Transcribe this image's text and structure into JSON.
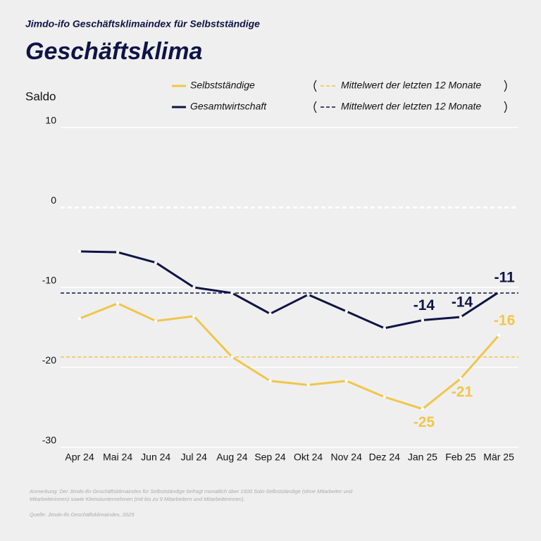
{
  "chart_data": {
    "type": "line",
    "supertitle": "Jimdo-ifo Geschäftsklimaindex für Selbstständige",
    "title": "Geschäftsklima",
    "y_label": "Saldo",
    "categories": [
      "Apr 24",
      "Mai 24",
      "Jun 24",
      "Jul 24",
      "Aug 24",
      "Sep 24",
      "Okt 24",
      "Nov 24",
      "Dez 24",
      "Jan 25",
      "Feb 25",
      "Mär 25"
    ],
    "series": [
      {
        "name": "Selbstständige",
        "color": "#f0c64a",
        "values": [
          -13.9,
          -12.0,
          -14.2,
          -13.6,
          -18.7,
          -21.7,
          -22.2,
          -21.7,
          -23.7,
          -25.2,
          -21.4,
          -16.0
        ],
        "value_labels": [
          null,
          null,
          null,
          null,
          null,
          null,
          null,
          null,
          null,
          "-25",
          "-21",
          "-16"
        ],
        "mean": -18.7,
        "mean_label": "Mittelwert der letzten 12 Monate"
      },
      {
        "name": "Gesamtwirtschaft",
        "color": "#0f1446",
        "values": [
          -5.5,
          -5.6,
          -6.9,
          -10.0,
          -10.7,
          -13.3,
          -10.9,
          -13.0,
          -15.1,
          -14.1,
          -13.7,
          -10.6
        ],
        "value_labels": [
          null,
          null,
          null,
          null,
          null,
          null,
          null,
          null,
          null,
          "-14",
          "-14",
          "-11"
        ],
        "mean": -10.7,
        "mean_label": "Mittelwert der letzten 12 Monate"
      }
    ],
    "ylim": [
      -30,
      10
    ],
    "yticks": [
      10,
      0,
      -10,
      -20,
      -30
    ],
    "grid": true,
    "notes": [
      "Anmerkung: Der Jimdo-ifo Geschäftsklimaindex für Selbstständige befragt monatlich über 1600 Solo-Selbstständige (ohne Mitarbeiter und",
      "Mitarbeiterinnen) sowie Kleinstunternehmen (mit bis zu 9 Mitarbeitern und Mitarbeiterinnen)."
    ],
    "source": "Quelle: Jimdo-ifo Geschäftsklimaindex, 2025"
  }
}
